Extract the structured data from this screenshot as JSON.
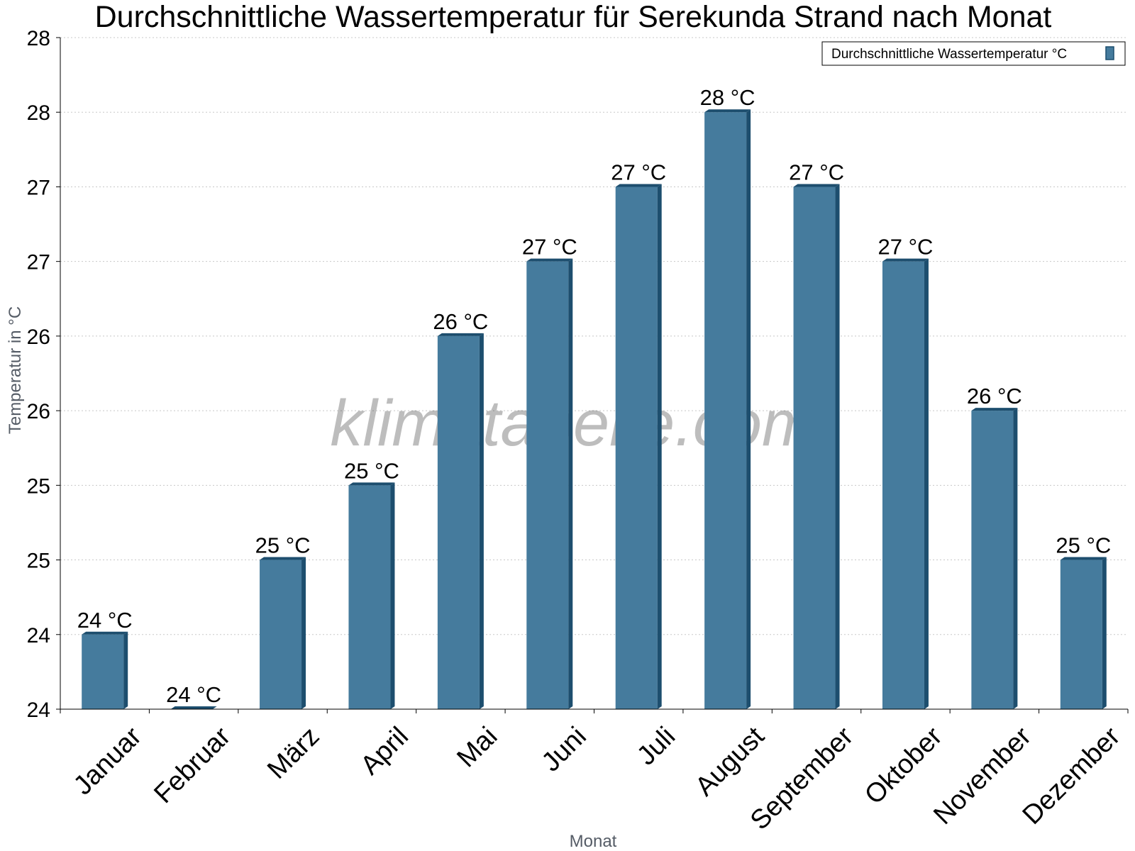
{
  "chart_data": {
    "type": "bar",
    "title": "Durchschnittliche Wassertemperatur für Serekunda Strand nach Monat",
    "xlabel": "Monat",
    "ylabel": "Temperatur in °C",
    "categories": [
      "Januar",
      "Februar",
      "März",
      "April",
      "Mai",
      "Juni",
      "Juli",
      "August",
      "September",
      "Oktober",
      "November",
      "Dezember"
    ],
    "series": [
      {
        "name": "Durchschnittliche Wassertemperatur °C",
        "values": [
          24.2,
          23.7,
          24.7,
          25.2,
          26.2,
          26.7,
          27.2,
          27.7,
          27.2,
          26.7,
          25.7,
          24.7
        ],
        "labels": [
          "24 °C",
          "24 °C",
          "25 °C",
          "25 °C",
          "26 °C",
          "27 °C",
          "27 °C",
          "28 °C",
          "27 °C",
          "27 °C",
          "26 °C",
          "25 °C"
        ]
      }
    ],
    "ylim": [
      23.7,
      28.2
    ],
    "yticks": [
      23.7,
      24.2,
      24.7,
      25.2,
      25.7,
      26.2,
      26.7,
      27.2,
      27.7,
      28.2
    ],
    "ytick_labels": [
      "24",
      "24",
      "25",
      "25",
      "26",
      "26",
      "27",
      "27",
      "28",
      "28"
    ],
    "grid": true,
    "legend_position": "top-right",
    "colors": {
      "bar": "#457b9d",
      "bar_side": "#1d4e6e",
      "bar_top": "#1d4e6e"
    }
  },
  "watermark": "klimatabelle.com"
}
